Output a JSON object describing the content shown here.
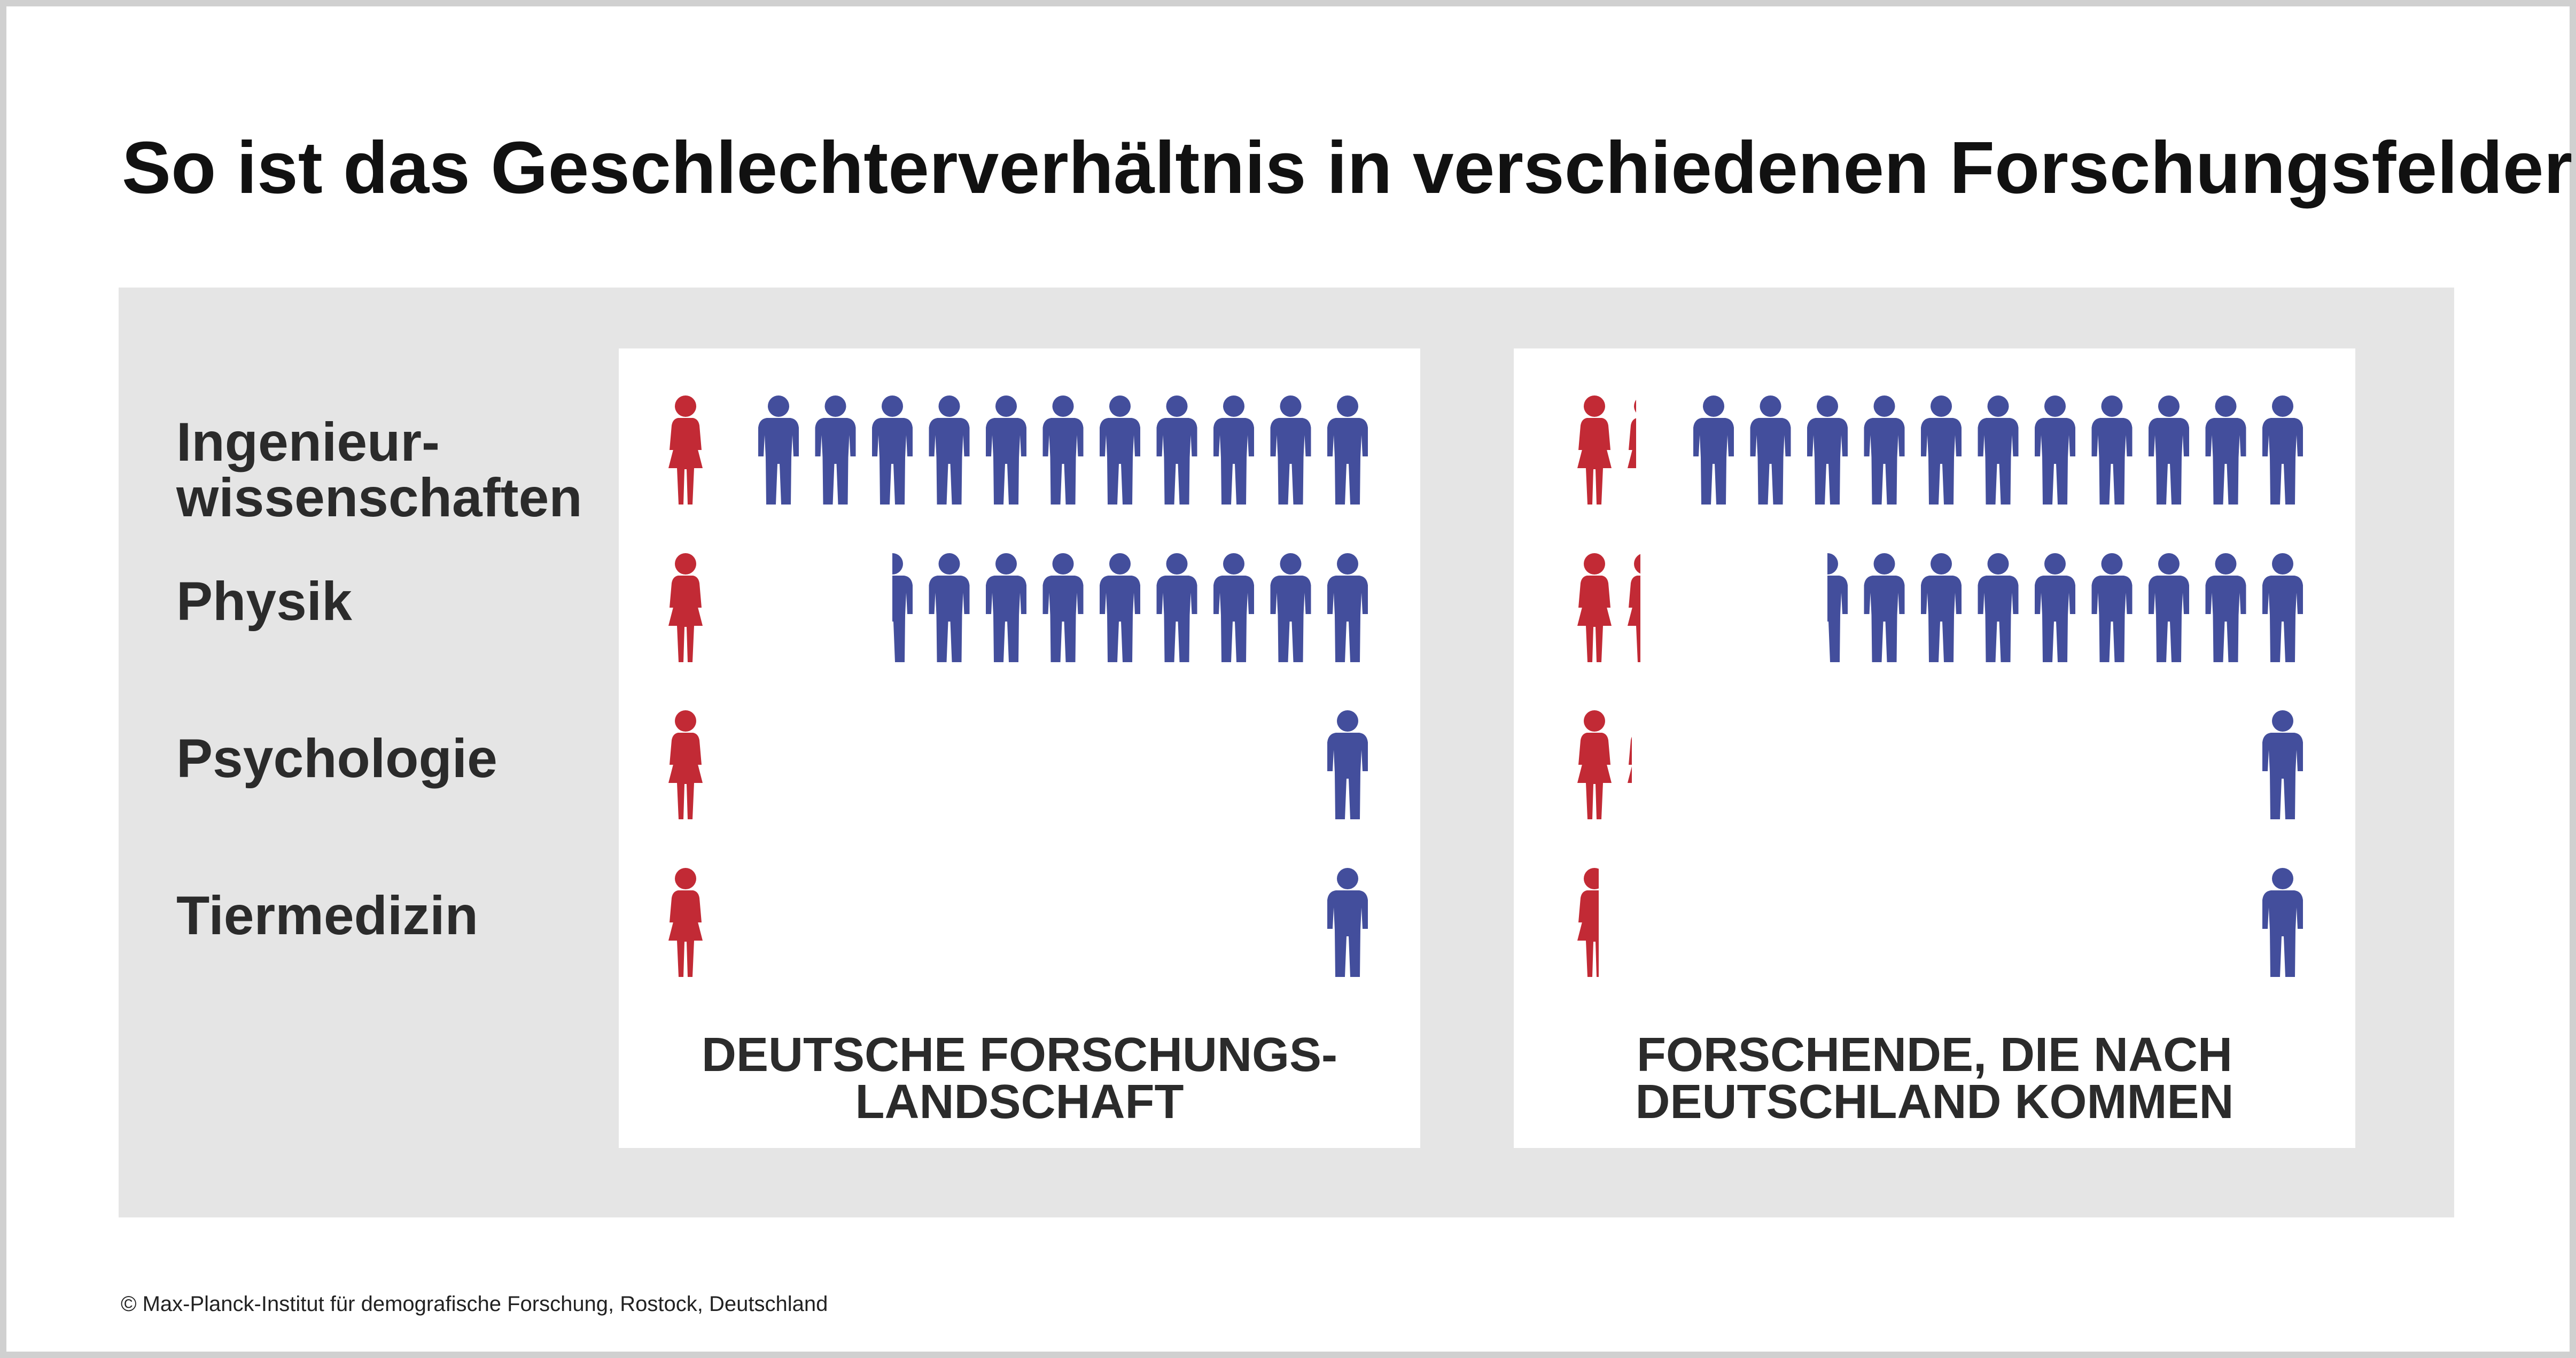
{
  "title": "So ist das Geschlechterverhältnis in verschiedenen Forschungsfeldern",
  "colors": {
    "female": "#c22a35",
    "male": "#434e9c",
    "background_area": "#e5e5e5",
    "panel": "#ffffff"
  },
  "icons": {
    "female": "female-figure-icon",
    "male": "male-figure-icon"
  },
  "rows": [
    {
      "label": "Ingenieur-\nwissenschaften"
    },
    {
      "label": "Physik"
    },
    {
      "label": "Psychologie"
    },
    {
      "label": "Tiermedizin"
    }
  ],
  "chart_data": [
    {
      "type": "pictogram",
      "caption": "DEUTSCHE FORSCHUNGS-\nLANDSCHAFT",
      "categories": [
        "Ingenieur-\nwissenschaften",
        "Physik",
        "Psychologie",
        "Tiermedizin"
      ],
      "series": [
        {
          "color": "#c22a35",
          "icon": "female-figure-icon",
          "values": [
            1,
            1,
            1,
            1
          ]
        },
        {
          "color": "#434e9c",
          "icon": "male-figure-icon",
          "values": [
            11,
            8.5,
            1,
            1
          ]
        }
      ]
    },
    {
      "type": "pictogram",
      "caption": "FORSCHENDE, DIE NACH\nDEUTSCHLAND KOMMEN",
      "categories": [
        "Ingenieur-\nwissenschaften",
        "Physik",
        "Psychologie",
        "Tiermedizin"
      ],
      "series": [
        {
          "color": "#c22a35",
          "icon": "female-figure-icon",
          "values": [
            1.3,
            1.4,
            1.2,
            0.6
          ]
        },
        {
          "color": "#434e9c",
          "icon": "male-figure-icon",
          "values": [
            11,
            8.5,
            1,
            1
          ]
        }
      ]
    }
  ],
  "footer": {
    "copyright": "© Max-Planck-Institut für demografische Forschung, Rostock, Deutschland"
  }
}
